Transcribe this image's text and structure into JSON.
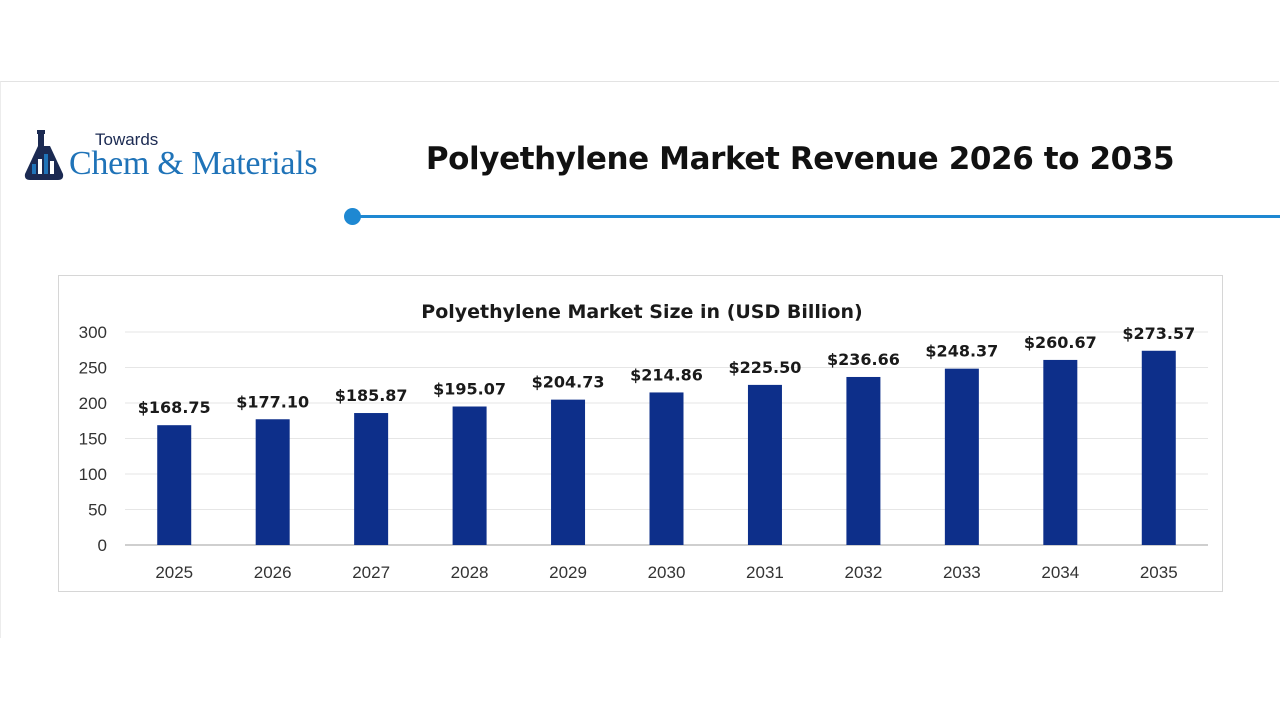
{
  "header": {
    "logo_small": "Towards",
    "logo_big": "Chem & Materials",
    "title": "Polyethylene Market Revenue 2026 to 2035"
  },
  "colors": {
    "bar": "#0d2f8a",
    "accent": "#1e88d2",
    "logo_blue": "#1f73b8",
    "logo_navy": "#1b2a52",
    "gridline": "#e6e6e6"
  },
  "chart_data": {
    "type": "bar",
    "title": "Polyethylene Market Size in (USD Billion)",
    "xlabel": "",
    "ylabel": "",
    "categories": [
      "2025",
      "2026",
      "2027",
      "2028",
      "2029",
      "2030",
      "2031",
      "2032",
      "2033",
      "2034",
      "2035"
    ],
    "values": [
      168.75,
      177.1,
      185.87,
      195.07,
      204.73,
      214.86,
      225.5,
      236.66,
      248.37,
      260.67,
      273.57
    ],
    "data_labels": [
      "$168.75",
      "$177.10",
      "$185.87",
      "$195.07",
      "$204.73",
      "$214.86",
      "$225.50",
      "$236.66",
      "$248.37",
      "$260.67",
      "$273.57"
    ],
    "ylim": [
      0,
      300
    ],
    "yticks": [
      0,
      50,
      100,
      150,
      200,
      250,
      300
    ],
    "grid": true,
    "legend": "none"
  }
}
